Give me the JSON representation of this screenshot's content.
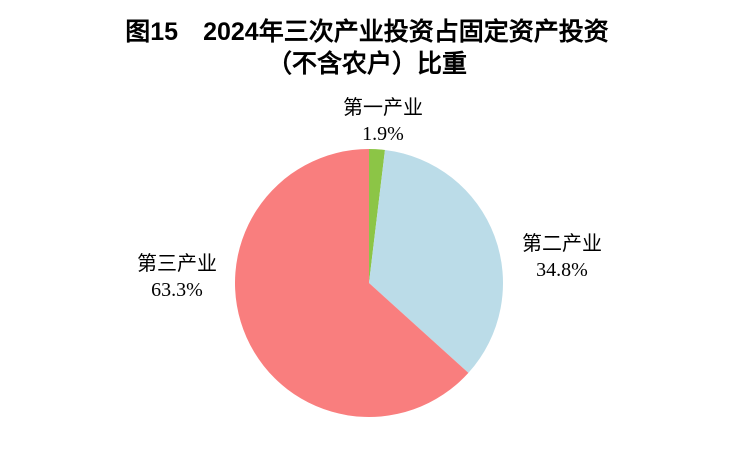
{
  "header": {
    "title_line1": "图15　2024年三次产业投资占固定资产投资",
    "title_line2": "（不含农户）比重"
  },
  "chart_data": {
    "type": "pie",
    "figure_number": "图15",
    "title": "2024年三次产业投资占固定资产投资（不含农户）比重",
    "direction": "clockwise",
    "start_angle_deg": 0,
    "legend_position": "none",
    "labels_outside": true,
    "background_color": "#ffffff",
    "slices": [
      {
        "id": "primary-industry",
        "label": "第一产业",
        "value": 1.9,
        "pct_text": "1.9%",
        "color": "#8CC546"
      },
      {
        "id": "secondary-industry",
        "label": "第二产业",
        "value": 34.8,
        "pct_text": "34.8%",
        "color": "#BBDCE8"
      },
      {
        "id": "tertiary-industry",
        "label": "第三产业",
        "value": 63.3,
        "pct_text": "63.3%",
        "color": "#F97E7E"
      }
    ]
  }
}
